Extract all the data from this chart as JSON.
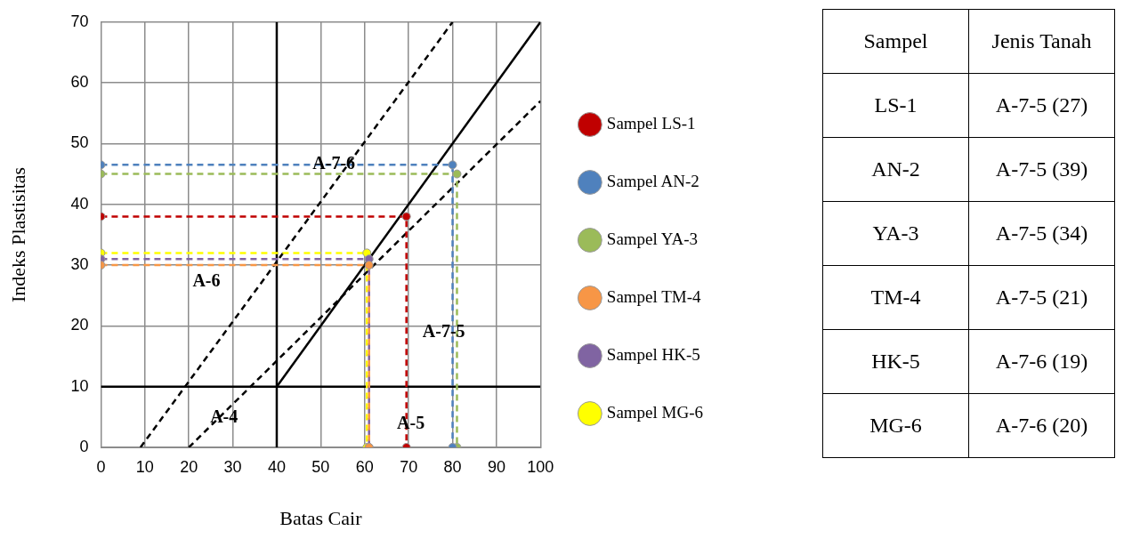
{
  "chart_data": [
    {
      "type": "line",
      "xlabel": "Batas Cair",
      "ylabel": "Indeks Plastisitas",
      "xlim": [
        0,
        100
      ],
      "ylim": [
        0,
        70
      ],
      "xticks": [
        0,
        10,
        20,
        30,
        40,
        50,
        60,
        70,
        80,
        90,
        100
      ],
      "yticks": [
        0,
        10,
        20,
        30,
        40,
        50,
        60,
        70
      ],
      "grid": true,
      "legend": "right",
      "marker": "circle",
      "line_style": "dashed",
      "series": [
        {
          "name": "Sampel LS-1",
          "color": "#c00000",
          "x": [
            0,
            69.5,
            69.5
          ],
          "values": [
            38,
            38,
            0
          ]
        },
        {
          "name": "Sampel AN-2",
          "color": "#4f81bd",
          "x": [
            0,
            80,
            80
          ],
          "values": [
            46.5,
            46.5,
            0
          ]
        },
        {
          "name": "Sampel YA-3",
          "color": "#9bbb59",
          "x": [
            0,
            81,
            81
          ],
          "values": [
            45,
            45,
            0
          ]
        },
        {
          "name": "Sampel TM-4",
          "color": "#f79646",
          "x": [
            0,
            61,
            61
          ],
          "values": [
            30,
            30,
            0
          ]
        },
        {
          "name": "Sampel HK-5",
          "color": "#8064a2",
          "x": [
            0,
            61,
            61
          ],
          "values": [
            31,
            31,
            0
          ]
        },
        {
          "name": "Sampel MG-6",
          "color": "#ffff00",
          "x": [
            0,
            60.5,
            60.5
          ],
          "values": [
            32,
            32,
            0
          ]
        },
        {
          "color": "#000000",
          "x": [
            40,
            100
          ],
          "values": [
            10,
            70
          ],
          "marker": "none",
          "line_style": "solid"
        },
        {
          "color": "#000000",
          "x": [
            40,
            40
          ],
          "values": [
            0,
            70
          ],
          "marker": "none",
          "line_style": "solid"
        },
        {
          "color": "#000000",
          "x": [
            0,
            100
          ],
          "values": [
            10,
            10
          ],
          "marker": "none",
          "line_style": "solid"
        },
        {
          "color": "#000000",
          "x": [
            9,
            80
          ],
          "values": [
            0,
            70
          ],
          "marker": "none"
        },
        {
          "color": "#000000",
          "x": [
            20,
            100
          ],
          "values": [
            0,
            57
          ],
          "marker": "none"
        }
      ],
      "annotations": [
        "A-7-6",
        "A-6",
        "A-7-5",
        "A-4",
        "A-5"
      ]
    },
    {
      "type": "other",
      "annotations": [
        "Sampel",
        "Jenis Tanah",
        "LS-1",
        "A-7-5 (27)",
        "AN-2",
        "A-7-5 (39)",
        "YA-3",
        "A-7-5 (34)",
        "TM-4",
        "A-7-5 (21)",
        "HK-5",
        "A-7-6 (19)",
        "MG-6",
        "A-7-6 (20)"
      ]
    }
  ]
}
